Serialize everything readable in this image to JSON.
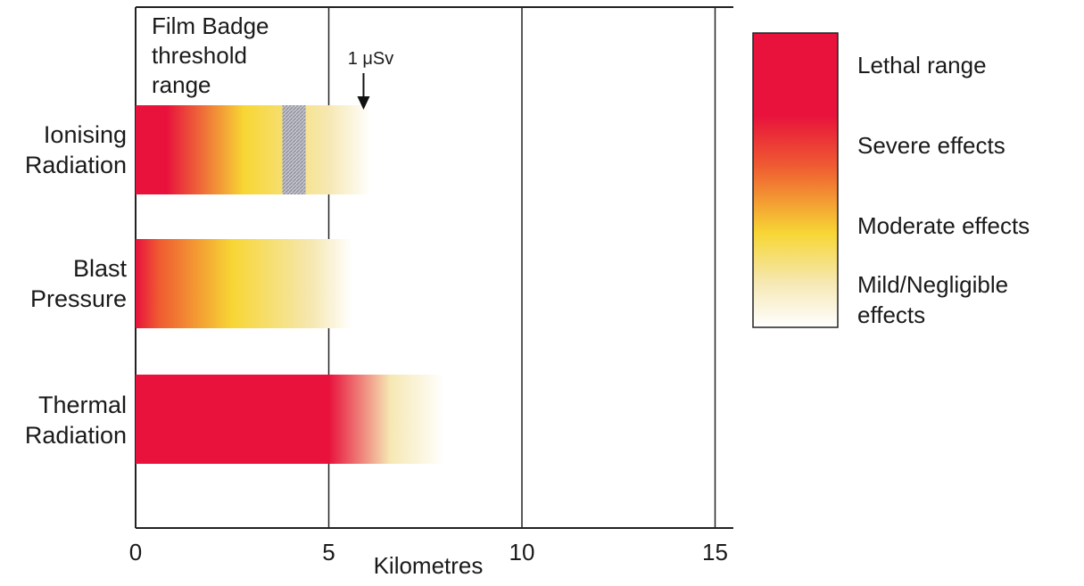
{
  "chart_data": {
    "type": "bar",
    "subtype": "horizontal-range-gradient",
    "xlabel": "Kilometres",
    "xlim": [
      0,
      15.5
    ],
    "xticks": [
      "0",
      "5",
      "10",
      "15"
    ],
    "grid": "vertical lines at 5, 10 and 15",
    "categories": [
      [
        "Ionising",
        "Radiation"
      ],
      [
        "Blast",
        "Pressure"
      ],
      [
        "Thermal",
        "Radiation"
      ]
    ],
    "series": [
      {
        "category": "Ionising Radiation",
        "max_km": 6.1,
        "stops": [
          [
            0,
            "lethal"
          ],
          [
            0.8,
            "lethal"
          ],
          [
            2.8,
            "moderate"
          ],
          [
            5.0,
            "mild"
          ],
          [
            6.1,
            "none"
          ]
        ],
        "hatched_band_km": [
          3.8,
          4.4
        ]
      },
      {
        "category": "Blast Pressure",
        "max_km": 5.6,
        "stops": [
          [
            0,
            "lethal"
          ],
          [
            0.6,
            "severe"
          ],
          [
            2.5,
            "moderate"
          ],
          [
            4.6,
            "mild"
          ],
          [
            5.6,
            "none"
          ]
        ]
      },
      {
        "category": "Thermal Radiation",
        "max_km": 8.0,
        "stops": [
          [
            0,
            "lethal"
          ],
          [
            5.0,
            "lethal"
          ],
          [
            6.6,
            "mild"
          ],
          [
            8.0,
            "none"
          ]
        ]
      }
    ],
    "annotations": [
      {
        "text": [
          "Film Badge",
          "threshold",
          "range"
        ]
      },
      {
        "text": "1 μSv",
        "x_km": 5.9,
        "arrow": "down"
      }
    ],
    "legend": {
      "placement": "right",
      "entries": [
        "Lethal range",
        "Severe effects",
        "Moderate effects",
        [
          "Mild/Negligible",
          "effects"
        ]
      ]
    },
    "colors": {
      "lethal": "#e8123c",
      "severe": "#ef5a32",
      "moderate": "#f7d634",
      "mild": "#f6e8b4",
      "none": "#ffffff",
      "hatch": "#8c8c99"
    }
  }
}
